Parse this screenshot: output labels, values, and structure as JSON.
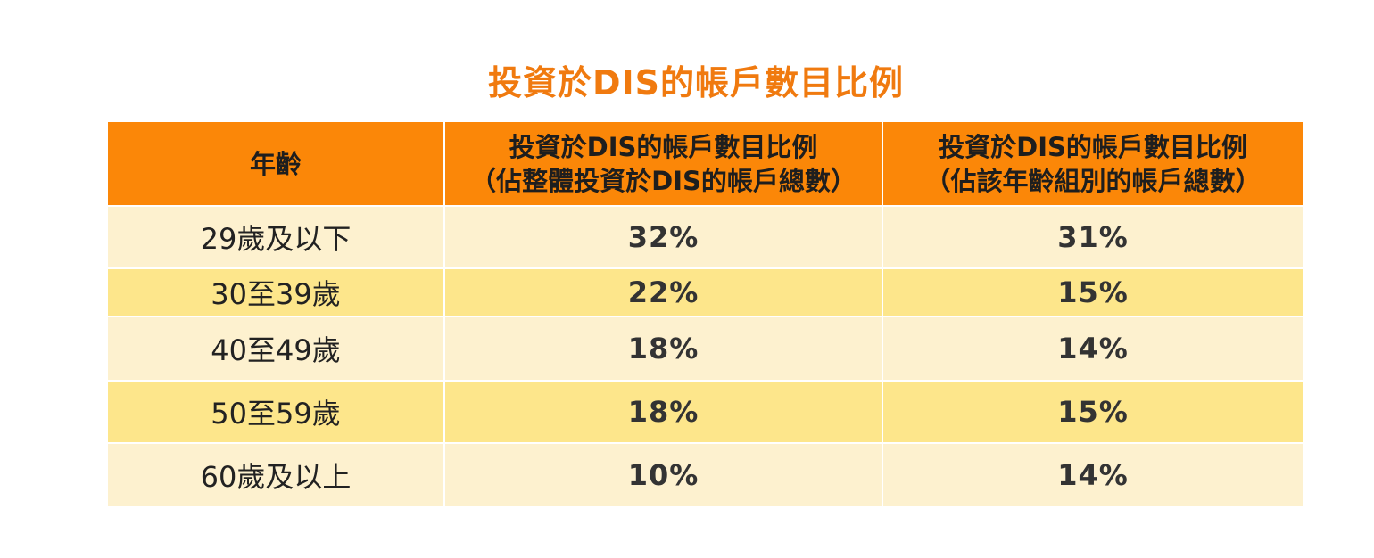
{
  "title": "投資於DIS的帳戶數目比例",
  "chart_data": {
    "type": "table",
    "title": "投資於DIS的帳戶數目比例",
    "columns": [
      "年齡",
      "投資於DIS的帳戶數目比例（佔整體投資於DIS的帳戶總數）",
      "投資於DIS的帳戶數目比例（佔該年齡組別的帳戶總數）"
    ],
    "rows": [
      [
        "29歲及以下",
        "32%",
        "31%"
      ],
      [
        "30至39歲",
        "22%",
        "15%"
      ],
      [
        "40至49歲",
        "18%",
        "14%"
      ],
      [
        "50至59歲",
        "18%",
        "15%"
      ],
      [
        "60歲及以上",
        "10%",
        "14%"
      ]
    ]
  },
  "table": {
    "header": {
      "col1": "年齡",
      "col2_line1": "投資於DIS的帳戶數目比例",
      "col2_line2": "（佔整體投資於DIS的帳戶總數）",
      "col3_line1": "投資於DIS的帳戶數目比例",
      "col3_line2": "（佔該年齡組別的帳戶總數）"
    },
    "rows": [
      {
        "age": "29歲及以下",
        "share_total": "32%",
        "share_group": "31%"
      },
      {
        "age": "30至39歲",
        "share_total": "22%",
        "share_group": "15%"
      },
      {
        "age": "40至49歲",
        "share_total": "18%",
        "share_group": "14%"
      },
      {
        "age": "50至59歲",
        "share_total": "18%",
        "share_group": "15%"
      },
      {
        "age": "60歲及以上",
        "share_total": "10%",
        "share_group": "14%"
      }
    ]
  },
  "colors": {
    "title": "#f07a0f",
    "header_bg": "#fb8708",
    "row_light": "#fdf1cf",
    "row_dark": "#fde68b"
  }
}
